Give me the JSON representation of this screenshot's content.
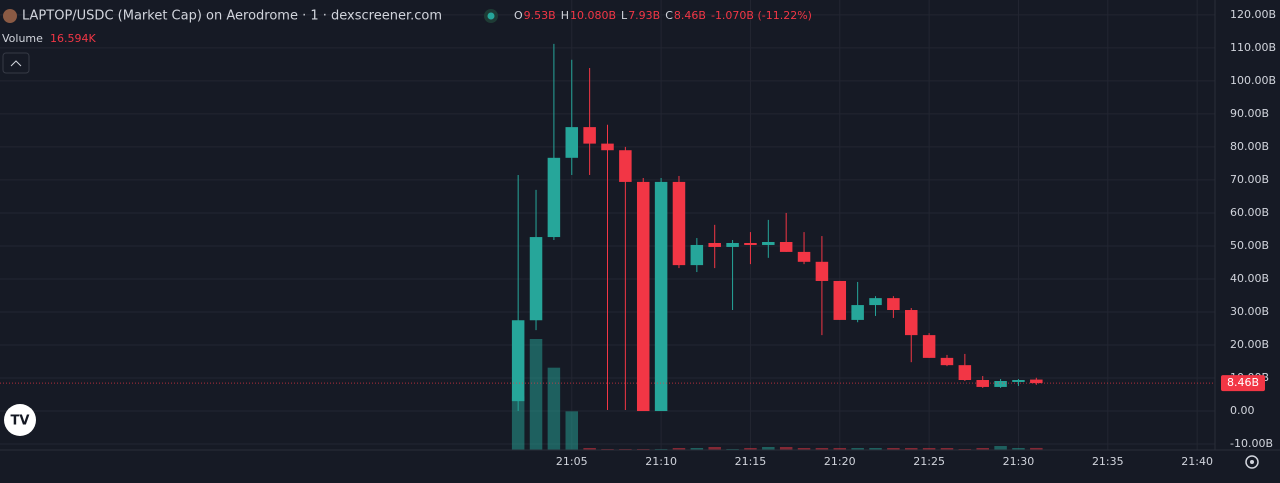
{
  "chart_data": {
    "type": "candlestick",
    "title": "LAPTOP/USDC (Market Cap) on Aerodrome · 1 · dexscreener.com",
    "legend_values": {
      "o_label": "O",
      "o": "9.53B",
      "h_label": "H",
      "h": "10.080B",
      "l_label": "L",
      "l": "7.93B",
      "c_label": "C",
      "c": "8.46B",
      "change": "-1.070B (-11.22%)"
    },
    "volume_label": "Volume",
    "volume_value": "16.594K",
    "x": [
      "21:02",
      "21:03",
      "21:04",
      "21:05",
      "21:06",
      "21:07",
      "21:08",
      "21:09",
      "21:10",
      "21:11",
      "21:12",
      "21:13",
      "21:14",
      "21:15",
      "21:16",
      "21:17",
      "21:18",
      "21:19",
      "21:20",
      "21:21",
      "21:22",
      "21:23",
      "21:24",
      "21:25",
      "21:26",
      "21:27",
      "21:28",
      "21:29",
      "21:30",
      "21:31"
    ],
    "open": [
      3,
      27.5,
      52.7,
      76.7,
      86,
      81,
      79,
      69.4,
      0,
      69.4,
      44.2,
      50.9,
      49.7,
      50.9,
      50.3,
      51.2,
      48.2,
      45.2,
      39.4,
      27.6,
      32.1,
      34.2,
      30.6,
      23,
      16.1,
      13.9,
      9.4,
      7.3,
      8.8,
      9.53
    ],
    "high": [
      71.5,
      67,
      111.2,
      106.4,
      103.9,
      86.7,
      80,
      70.6,
      70.6,
      71.2,
      52.4,
      56.4,
      51.8,
      54.2,
      57.9,
      60,
      54.2,
      53,
      39.4,
      39.1,
      34.8,
      34.8,
      31.2,
      23.6,
      17,
      17.3,
      10.6,
      9.7,
      9.7,
      10.08
    ],
    "low": [
      0,
      24.5,
      51.8,
      71.5,
      71.5,
      0.3,
      0.3,
      0,
      0,
      43.3,
      42.1,
      43.3,
      30.6,
      44.5,
      46.4,
      48.2,
      44.5,
      23,
      27.6,
      26.9,
      28.8,
      28.2,
      14.8,
      16.1,
      13.6,
      9.1,
      7,
      7,
      7.6,
      7.93
    ],
    "close": [
      27.5,
      52.7,
      76.7,
      86,
      81,
      79,
      69.4,
      0,
      69.4,
      44.2,
      50.3,
      49.7,
      50.9,
      50.3,
      51.2,
      48.2,
      45.2,
      39.4,
      27.6,
      32.1,
      34.2,
      30.6,
      23,
      16.1,
      13.9,
      9.4,
      7.3,
      9.1,
      9.4,
      8.46
    ],
    "volume": [
      430,
      890,
      660,
      310,
      16,
      8,
      8,
      8,
      8,
      16,
      16,
      24,
      8,
      16,
      24,
      24,
      16,
      16,
      16,
      16,
      16,
      16,
      16,
      16,
      16,
      8,
      16,
      32,
      16,
      16.594
    ],
    "up_color": "#26a69a",
    "down_color": "#f23645",
    "last_price": 8.46,
    "last_price_label": "8.46B",
    "xlim": [
      "20:33",
      "21:41"
    ],
    "xticks": [
      "21:05",
      "21:10",
      "21:15",
      "21:20",
      "21:25",
      "21:30",
      "21:35",
      "21:40"
    ],
    "ylim": [
      -11.8,
      124.5
    ],
    "yticks": [
      {
        "value": -10,
        "label": "-10.00B"
      },
      {
        "value": 0,
        "label": "0.00"
      },
      {
        "value": 10,
        "label": "10.00B"
      },
      {
        "value": 20,
        "label": "20.00B"
      },
      {
        "value": 30,
        "label": "30.00B"
      },
      {
        "value": 40,
        "label": "40.00B"
      },
      {
        "value": 50,
        "label": "50.00B"
      },
      {
        "value": 60,
        "label": "60.00B"
      },
      {
        "value": 70,
        "label": "70.00B"
      },
      {
        "value": 80,
        "label": "80.00B"
      },
      {
        "value": 90,
        "label": "90.00B"
      },
      {
        "value": 100,
        "label": "100.00B"
      },
      {
        "value": 110,
        "label": "110.00B"
      },
      {
        "value": 120,
        "label": "120.00B"
      }
    ],
    "grid": true
  }
}
